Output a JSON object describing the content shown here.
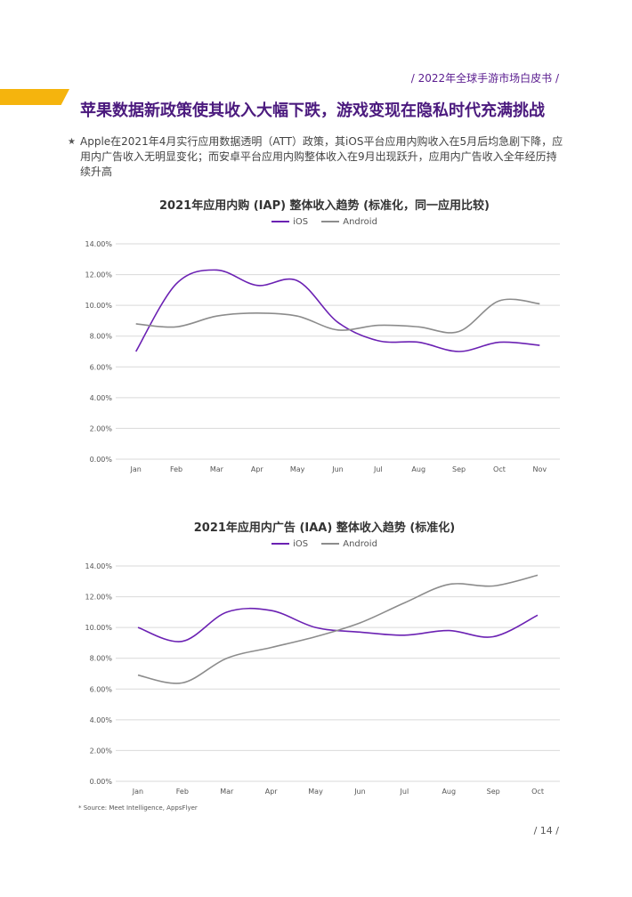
{
  "header": {
    "report_tag": "/ 2022年全球手游市场白皮书 /",
    "headline": "苹果数据新政策使其收入大幅下跌，游戏变现在隐私时代充满挑战",
    "bullet": "Apple在2021年4月实行应用数据透明（ATT）政策，其iOS平台应用内购收入在5月后均急剧下降，应用内广告收入无明显变化；而安卓平台应用内购整体收入在9月出现跃升，应用内广告收入全年经历持续升高",
    "bullet_marker": "★"
  },
  "colors": {
    "ios": "#6b21b3",
    "android": "#8c8c8c",
    "grid": "#d9d9d9"
  },
  "chart_data": [
    {
      "type": "line",
      "title": "2021年应用内购 (IAP) 整体收入趋势 (标准化，同一应用比较)",
      "categories": [
        "Jan",
        "Feb",
        "Mar",
        "Apr",
        "May",
        "Jun",
        "Jul",
        "Aug",
        "Sep",
        "Oct",
        "Nov"
      ],
      "ylim": [
        0,
        14
      ],
      "yticks": [
        "0.00%",
        "2.00%",
        "4.00%",
        "6.00%",
        "8.00%",
        "10.00%",
        "12.00%",
        "14.00%"
      ],
      "series": [
        {
          "name": "iOS",
          "values": [
            7.0,
            11.4,
            12.3,
            11.3,
            11.6,
            8.9,
            7.7,
            7.6,
            7.0,
            7.6,
            7.4
          ]
        },
        {
          "name": "Android",
          "values": [
            8.8,
            8.6,
            9.3,
            9.5,
            9.3,
            8.4,
            8.7,
            8.6,
            8.3,
            10.3,
            10.1
          ]
        }
      ],
      "grid": true,
      "legend": "top-center"
    },
    {
      "type": "line",
      "title": "2021年应用内广告 (IAA) 整体收入趋势 (标准化)",
      "categories": [
        "Jan",
        "Feb",
        "Mar",
        "Apr",
        "May",
        "Jun",
        "Jul",
        "Aug",
        "Sep",
        "Oct"
      ],
      "ylim": [
        0,
        14
      ],
      "yticks": [
        "0.00%",
        "2.00%",
        "4.00%",
        "6.00%",
        "8.00%",
        "10.00%",
        "12.00%",
        "14.00%"
      ],
      "series": [
        {
          "name": "iOS",
          "values": [
            10.0,
            9.1,
            11.0,
            11.1,
            10.0,
            9.7,
            9.5,
            9.8,
            9.4,
            10.8
          ]
        },
        {
          "name": "Android",
          "values": [
            6.9,
            6.4,
            8.0,
            8.7,
            9.4,
            10.3,
            11.6,
            12.8,
            12.7,
            13.4
          ]
        }
      ],
      "grid": true,
      "legend": "top-center"
    }
  ],
  "footer": {
    "source": "* Source: Meet Intelligence, AppsFlyer",
    "page": "/ 14 /"
  }
}
